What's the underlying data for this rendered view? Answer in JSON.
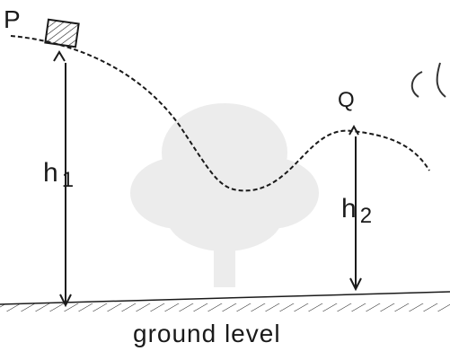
{
  "labels": {
    "point_p": "P",
    "point_q": "Q",
    "height_1_letter": "h",
    "height_1_sub": "1",
    "height_2_letter": "h",
    "height_2_sub": "2",
    "ground": "ground level"
  },
  "colors": {
    "ink": "#1a1a1a",
    "watermark": "#ececec",
    "background": "#ffffff"
  }
}
